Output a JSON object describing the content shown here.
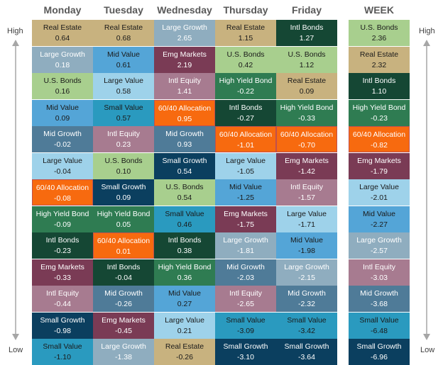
{
  "chart_data": {
    "type": "table",
    "columns": [
      "Monday",
      "Tuesday",
      "Wednesday",
      "Thursday",
      "Friday",
      "WEEK"
    ],
    "top_label": "High",
    "bottom_label": "Low",
    "rows": [
      [
        [
          "Real Estate",
          "0.64"
        ],
        [
          "Real Estate",
          "0.68"
        ],
        [
          "Large Growth",
          "2.65"
        ],
        [
          "Real Estate",
          "1.15"
        ],
        [
          "Intl Bonds",
          "1.27"
        ],
        [
          "U.S. Bonds",
          "2.36"
        ]
      ],
      [
        [
          "Large Growth",
          "0.18"
        ],
        [
          "Mid Value",
          "0.61"
        ],
        [
          "Emg Markets",
          "2.19"
        ],
        [
          "U.S. Bonds",
          "0.42"
        ],
        [
          "U.S. Bonds",
          "1.12"
        ],
        [
          "Real Estate",
          "2.32"
        ]
      ],
      [
        [
          "U.S. Bonds",
          "0.16"
        ],
        [
          "Large Value",
          "0.58"
        ],
        [
          "Intl Equity",
          "1.41"
        ],
        [
          "High Yield Bond",
          "-0.22"
        ],
        [
          "Real Estate",
          "0.09"
        ],
        [
          "Intl Bonds",
          "1.10"
        ]
      ],
      [
        [
          "Mid Value",
          "0.09"
        ],
        [
          "Small Value",
          "0.57"
        ],
        [
          "60/40 Allocation",
          "0.95"
        ],
        [
          "Intl Bonds",
          "-0.27"
        ],
        [
          "High Yield Bond",
          "-0.33"
        ],
        [
          "High Yield Bond",
          "-0.23"
        ]
      ],
      [
        [
          "Mid Growth",
          "-0.02"
        ],
        [
          "Intl Equity",
          "0.23"
        ],
        [
          "Mid Growth",
          "0.93"
        ],
        [
          "60/40 Allocation",
          "-1.01"
        ],
        [
          "60/40 Allocation",
          "-0.70"
        ],
        [
          "60/40 Allocation",
          "-0.82"
        ]
      ],
      [
        [
          "Large Value",
          "-0.04"
        ],
        [
          "U.S. Bonds",
          "0.10"
        ],
        [
          "Small Growth",
          "0.54"
        ],
        [
          "Large Value",
          "-1.05"
        ],
        [
          "Emg Markets",
          "-1.42"
        ],
        [
          "Emg Markets",
          "-1.79"
        ]
      ],
      [
        [
          "60/40 Allocation",
          "-0.08"
        ],
        [
          "Small Growth",
          "0.09"
        ],
        [
          "U.S. Bonds",
          "0.54"
        ],
        [
          "Mid Value",
          "-1.25"
        ],
        [
          "Intl Equity",
          "-1.57"
        ],
        [
          "Large Value",
          "-2.01"
        ]
      ],
      [
        [
          "High Yield Bond",
          "-0.09"
        ],
        [
          "High Yield Bond",
          "0.05"
        ],
        [
          "Small Value",
          "0.46"
        ],
        [
          "Emg Markets",
          "-1.75"
        ],
        [
          "Large Value",
          "-1.71"
        ],
        [
          "Mid Value",
          "-2.27"
        ]
      ],
      [
        [
          "Intl Bonds",
          "-0.23"
        ],
        [
          "60/40 Allocation",
          "0.01"
        ],
        [
          "Intl Bonds",
          "0.38"
        ],
        [
          "Large Growth",
          "-1.81"
        ],
        [
          "Mid Value",
          "-1.98"
        ],
        [
          "Large Growth",
          "-2.57"
        ]
      ],
      [
        [
          "Emg Markets",
          "-0.33"
        ],
        [
          "Intl Bonds",
          "-0.04"
        ],
        [
          "High Yield Bond",
          "0.36"
        ],
        [
          "Mid Growth",
          "-2.03"
        ],
        [
          "Large Growth",
          "-2.15"
        ],
        [
          "Intl Equity",
          "-3.03"
        ]
      ],
      [
        [
          "Intl Equity",
          "-0.44"
        ],
        [
          "Mid Growth",
          "-0.26"
        ],
        [
          "Mid Value",
          "0.27"
        ],
        [
          "Intl Equity",
          "-2.65"
        ],
        [
          "Mid Growth",
          "-2.32"
        ],
        [
          "Mid Growth",
          "-3.68"
        ]
      ],
      [
        [
          "Small Growth",
          "-0.98"
        ],
        [
          "Emg Markets",
          "-0.45"
        ],
        [
          "Large Value",
          "0.21"
        ],
        [
          "Small Value",
          "-3.09"
        ],
        [
          "Small Value",
          "-3.42"
        ],
        [
          "Small Value",
          "-6.48"
        ]
      ],
      [
        [
          "Small Value",
          "-1.10"
        ],
        [
          "Large Growth",
          "-1.38"
        ],
        [
          "Real Estate",
          "-0.26"
        ],
        [
          "Small Growth",
          "-3.10"
        ],
        [
          "Small Growth",
          "-3.64"
        ],
        [
          "Small Growth",
          "-6.96"
        ]
      ]
    ],
    "asset_colors": {
      "Real Estate": "#c8b27f",
      "Large Growth": "#8fadbf",
      "U.S. Bonds": "#a8cf8e",
      "Mid Value": "#54a5d7",
      "Mid Growth": "#4f7b98",
      "Large Value": "#9ed2ea",
      "60/40 Allocation": "#f76a0f",
      "High Yield Bond": "#2f7c52",
      "Intl Bonds": "#154734",
      "Emg Markets": "#7a3b55",
      "Intl Equity": "#a77b90",
      "Small Growth": "#0b3f5f",
      "Small Value": "#2a9abf"
    },
    "text_colors": {
      "Real Estate": "#1a1a1a",
      "Large Growth": "#ffffff",
      "U.S. Bonds": "#1a1a1a",
      "Mid Value": "#1a1a1a",
      "Mid Growth": "#ffffff",
      "Large Value": "#1a1a1a",
      "60/40 Allocation": "#ffffff",
      "High Yield Bond": "#ffffff",
      "Intl Bonds": "#ffffff",
      "Emg Markets": "#ffffff",
      "Intl Equity": "#ffffff",
      "Small Growth": "#ffffff",
      "Small Value": "#1a1a1a"
    },
    "arrow_color": "#a6a6a6"
  }
}
